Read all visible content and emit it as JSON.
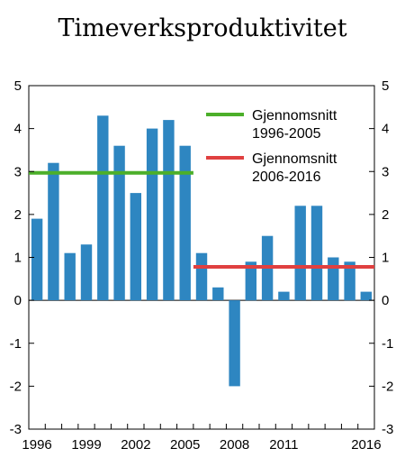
{
  "chart_data": {
    "type": "bar",
    "title": "Timeverksproduktivitet",
    "xlabel": "",
    "ylabel": "",
    "ylim": [
      -3,
      5
    ],
    "yticks": [
      5,
      4,
      3,
      2,
      1,
      0,
      -1,
      -2,
      -3
    ],
    "categories": [
      1996,
      1997,
      1998,
      1999,
      2000,
      2001,
      2002,
      2003,
      2004,
      2005,
      2006,
      2007,
      2008,
      2009,
      2010,
      2011,
      2012,
      2013,
      2014,
      2015,
      2016
    ],
    "x_tick_labels": [
      "1996",
      "1999",
      "2002",
      "2005",
      "2008",
      "2011",
      "2016"
    ],
    "values": [
      1.9,
      3.2,
      1.1,
      1.3,
      4.3,
      3.6,
      2.5,
      4.0,
      4.2,
      3.6,
      1.1,
      0.3,
      -2.0,
      0.9,
      1.5,
      0.2,
      2.2,
      2.2,
      1.0,
      0.9,
      0.2
    ],
    "averages": [
      {
        "label_line1": "Gjennomsnitt",
        "label_line2": "1996-2005",
        "value": 2.97,
        "from": 1996,
        "to": 2005,
        "color": "#4caf2a"
      },
      {
        "label_line1": "Gjennomsnitt",
        "label_line2": "2006-2016",
        "value": 0.78,
        "from": 2006,
        "to": 2016,
        "color": "#e04040"
      }
    ],
    "bar_color": "#2e86c1",
    "grid": false,
    "legend_position": "top-right"
  }
}
